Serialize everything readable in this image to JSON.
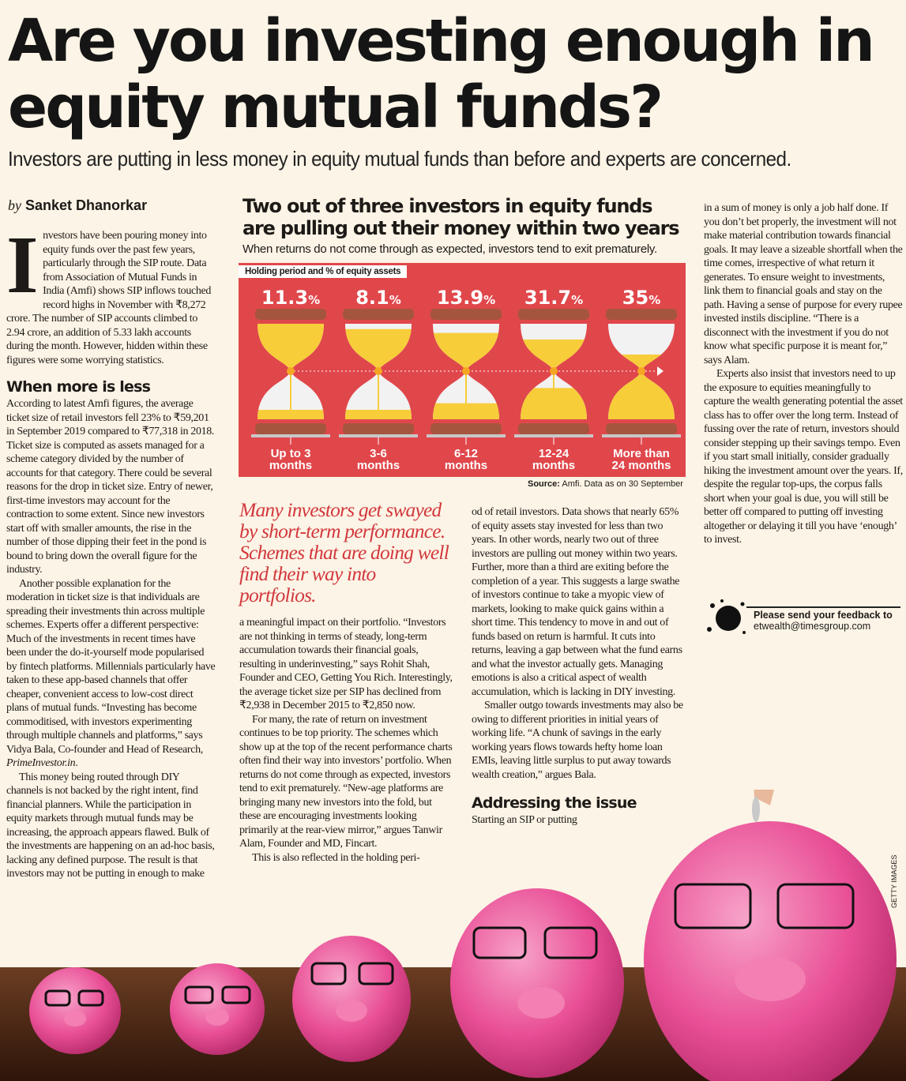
{
  "headline": "Are you investing enough in equity mutual funds?",
  "standfirst": "Investors are putting in less money in equity mutual funds than before and experts are concerned.",
  "byline": {
    "prefix": "by",
    "author": "Sanket Dhanorkar"
  },
  "column1": {
    "dropcap": "I",
    "p1": "nvestors have been pouring money into equity funds over the past few years, particularly through the SIP route. Data from Association of Mutual Funds in India (Amfi) shows SIP inflows touched record highs in November with ₹8,272 crore. The number of SIP accounts climbed to 2.94 crore, an addition of 5.33 lakh accounts during the month. However, hidden within these figures were some worrying statistics.",
    "subhead": "When more is less",
    "p2": "According to latest Amfi figures, the average ticket size of retail investors fell 23% to ₹59,201 in September 2019 compared to ₹77,318 in 2018. Ticket size is computed as assets managed for a scheme category divided by the number of accounts for that category. There could be several reasons for the drop in ticket size. Entry of newer, first-time investors may account for the contraction to some extent. Since new investors start off with smaller amounts, the rise in the number of those dipping their feet in the pond is bound to bring down the overall figure for the industry.",
    "p3": "Another possible explanation for the moderation in ticket size is that individuals are spreading their investments thin across multiple schemes. Experts offer a different perspective: Much of the investments in recent times have been under the do-it-yourself mode popularised by fintech platforms. Millennials particularly have taken to these app-based channels that offer cheaper, convenient access to low-cost direct plans of mutual funds. “Investing has become commoditised, with investors experimenting through multiple channels and platforms,” says Vidya Bala, Co-founder and Head of Research,",
    "p3_italic": "PrimeInvestor.in",
    "p4": "This money being routed through DIY channels is not backed by the right intent, find financial planners. While the participation in equity markets through mutual funds may be increasing, the approach appears flawed. Bulk of the investments are happening on an ad-hoc basis, lacking any defined purpose. The result is that investors may not be putting in enough to make"
  },
  "infographic": {
    "title": "Two out of three investors in equity funds are pulling out their money within two years",
    "subtitle": "When returns do not come through as expected, investors tend to exit prematurely.",
    "tag": "Holding period and % of equity assets",
    "source_label": "Source:",
    "source_text": "Amfi. Data as on 30 September",
    "colors": {
      "panel": "#e0474b",
      "sand": "#f7cd3a",
      "frame": "#a5553e"
    },
    "items": [
      {
        "value": "11.3",
        "unit": "%",
        "label1": "Up to 3",
        "label2": "months",
        "pct": 11.3
      },
      {
        "value": "8.1",
        "unit": "%",
        "label1": "3-6",
        "label2": "months",
        "pct": 8.1
      },
      {
        "value": "13.9",
        "unit": "%",
        "label1": "6-12",
        "label2": "months",
        "pct": 13.9
      },
      {
        "value": "31.7",
        "unit": "%",
        "label1": "12-24",
        "label2": "months",
        "pct": 31.7
      },
      {
        "value": "35",
        "unit": "%",
        "label1": "More than",
        "label2": "24 months",
        "pct": 35
      }
    ]
  },
  "pullquote": "Many investors get swayed by short-term performance. Schemes that are doing well find their way into portfolios.",
  "column2a": {
    "p1": "a meaningful impact on their portfolio. “Investors are not thinking in terms of steady, long-term accumulation towards their financial goals, resulting in underinvesting,” says Rohit Shah, Founder and CEO, Getting You Rich. Interestingly, the average ticket size per SIP has declined from ₹2,938 in December 2015 to ₹2,850 now.",
    "p2": "For many, the rate of return on investment continues to be top priority. The schemes which show up at the top of the recent performance charts often find their way into investors’ portfolio. When returns do not come through as expected, investors tend to exit prematurely. “New-age platforms are bringing many new investors into the fold, but these are encouraging investments looking primarily at the rear-view mirror,” argues Tanwir Alam, Founder and MD, Fincart.",
    "p3": "This is also reflected in the holding peri-"
  },
  "column2b": {
    "p1": "od of retail investors. Data shows that nearly 65% of equity assets stay invested for less than two years. In other words, nearly two out of three investors are pulling out money within two years. Further, more than a third are exiting before the completion of a year. This suggests a large swathe of investors continue to take a myopic view of markets, looking to make quick gains within a short time. This tendency to move in and out of funds based on return is harmful. It cuts into returns, leaving a gap between what the fund earns and what the investor actually gets. Managing emotions is also a critical aspect of wealth accumulation, which is lacking in DIY investing.",
    "p2": "Smaller outgo towards investments may also be owing to different priorities in initial years of working life. “A chunk of savings in the early working years flows towards hefty home loan EMIs, leaving little surplus to put away towards wealth creation,” argues Bala.",
    "subhead": "Addressing the issue",
    "p3": "Starting an SIP or putting"
  },
  "column4": {
    "p1": "in a sum of money is only a job half done. If you don’t bet properly, the investment will not make material contribution towards financial goals. It may leave a sizeable shortfall when the time comes, irrespective of what return it generates. To ensure weight to investments, link them to financial goals and stay on the path. Having a sense of purpose for every rupee invested instils discipline. “There is a disconnect with the investment if you do not know what specific purpose it is meant for,” says Alam.",
    "p2": "Experts also insist that investors need to up the exposure to equities meaningfully to capture the wealth generating potential the asset class has to offer over the long term. Instead of fussing over the rate of return, investors should consider stepping up their savings tempo. Even if you start small initially, consider gradually hiking the investment amount over the years. If, despite the regular top-ups, the corpus falls short when your goal is due, you will still be better off compared to putting off investing altogether or delaying it till you have ‘enough’ to invest."
  },
  "feedback": {
    "line1": "Please send your feedback to",
    "email": "etwealth@timesgroup.com"
  },
  "photo_credit": "GETTY IMAGES"
}
